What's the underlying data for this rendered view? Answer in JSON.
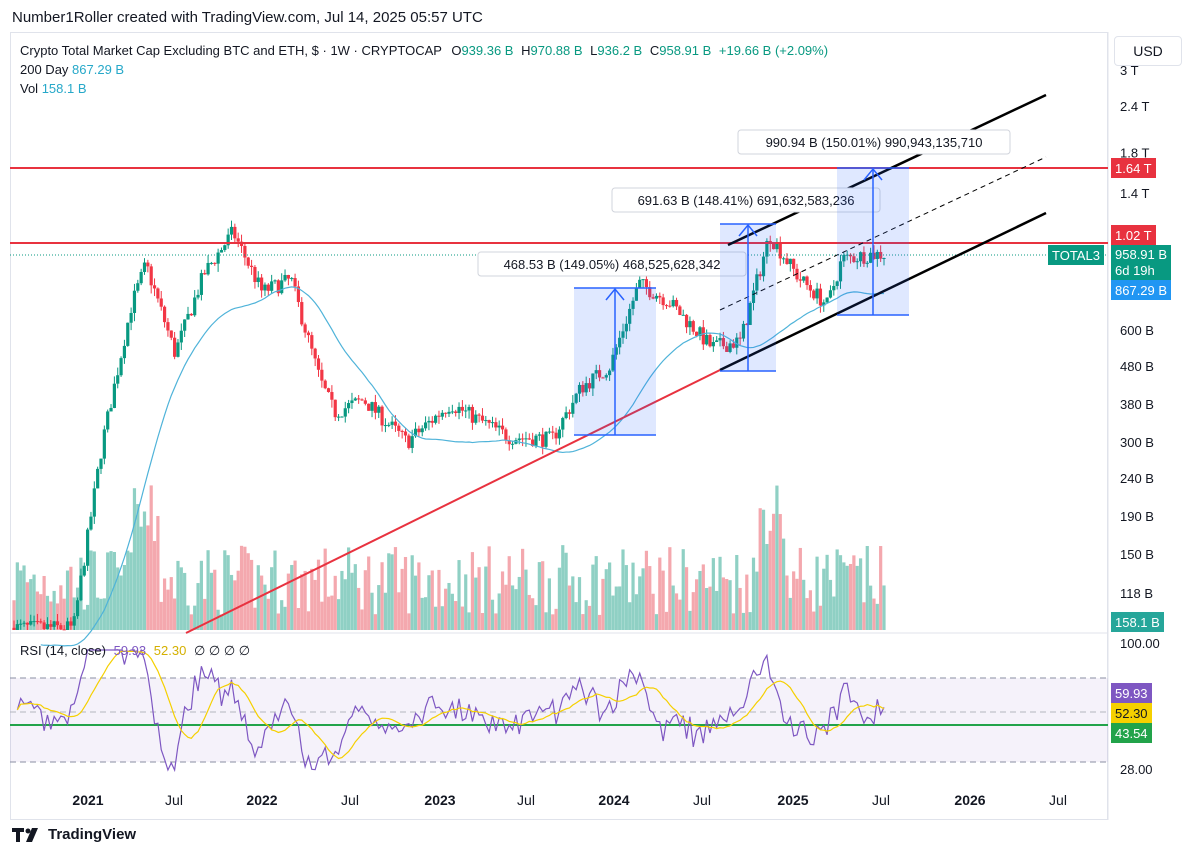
{
  "credit": "Number1Roller created with TradingView.com, Jul 14, 2025 05:57 UTC",
  "currency_button": "USD",
  "legend": {
    "title": "Crypto Total Market Cap Excluding BTC and ETH, $ · 1W · CRYPTOCAP",
    "open_label": "O",
    "open": "939.36 B",
    "high_label": "H",
    "high": "970.88 B",
    "low_label": "L",
    "low": "936.2 B",
    "close_label": "C",
    "close": "958.91 B",
    "change": "+19.66 B (+2.09%)",
    "ma_label": "200 Day",
    "ma_value": "867.29 B",
    "vol_label": "Vol",
    "vol_value": "158.1 B"
  },
  "rsi_legend": {
    "label": "RSI (14, close)",
    "value": "59.93",
    "ma_value": "52.30",
    "extras": "∅ ∅ ∅ ∅"
  },
  "price_tags": {
    "top_red": "1.64 T",
    "mid_red": "1.02 T",
    "symbol": "TOTAL3",
    "current": "958.91 B",
    "countdown": "6d 19h",
    "ma": "867.29 B",
    "vol": "158.1 B",
    "rsi": "59.93",
    "rsi_ma": "52.30",
    "rsi_level": "43.54"
  },
  "colors": {
    "up": "#089981",
    "down": "#f23645",
    "ma": "#4fb3d9",
    "red_line": "#e8323f",
    "blue": "#2962ff",
    "rsi": "#7e57c2",
    "rsi_ma": "#f5d000",
    "rsi_green": "#22a34a"
  },
  "footer": "TradingView",
  "chart_data": {
    "type": "candlestick",
    "title": "Crypto Total Market Cap Excluding BTC and ETH, $ · 1W · CRYPTOCAP",
    "y_scale": "log",
    "y_ticks": [
      "3 T",
      "2.4 T",
      "1.8 T",
      "1.4 T",
      "600 B",
      "480 B",
      "380 B",
      "300 B",
      "240 B",
      "190 B",
      "150 B",
      "118 B"
    ],
    "x_ticks": [
      "2021",
      "Jul",
      "2022",
      "Jul",
      "2023",
      "Jul",
      "2024",
      "Jul",
      "2025",
      "Jul",
      "2026",
      "Jul"
    ],
    "approx_weekly_close_path_B": [
      [
        "2020-12",
        95
      ],
      [
        "2021-02",
        300
      ],
      [
        "2021-04",
        700
      ],
      [
        "2021-05",
        900
      ],
      [
        "2021-07",
        520
      ],
      [
        "2021-09",
        850
      ],
      [
        "2021-11",
        1100
      ],
      [
        "2022-01",
        760
      ],
      [
        "2022-03",
        820
      ],
      [
        "2022-05",
        440
      ],
      [
        "2022-06",
        360
      ],
      [
        "2022-08",
        390
      ],
      [
        "2022-11",
        300
      ],
      [
        "2023-02",
        380
      ],
      [
        "2023-06",
        310
      ],
      [
        "2023-09",
        305
      ],
      [
        "2023-11",
        420
      ],
      [
        "2024-01",
        480
      ],
      [
        "2024-03",
        800
      ],
      [
        "2024-05",
        720
      ],
      [
        "2024-08",
        540
      ],
      [
        "2024-10",
        560
      ],
      [
        "2024-12",
        1080
      ],
      [
        "2025-02",
        830
      ],
      [
        "2025-04",
        700
      ],
      [
        "2025-05",
        930
      ],
      [
        "2025-07",
        958.91
      ]
    ],
    "ma_200_latest": "867.29 B",
    "horizontal_lines": [
      "1.64 T",
      "1.02 T"
    ],
    "measurements": [
      {
        "label": "468.53 B (149.05%) 468,525,628,342"
      },
      {
        "label": "691.63 B (148.41%) 691,632,583,236"
      },
      {
        "label": "990.94 B (150.01%) 990,943,135,710"
      }
    ],
    "rsi": {
      "y_ticks": [
        "100.00",
        "28.00"
      ],
      "latest": 59.93,
      "ma": 52.3,
      "level": 43.54
    }
  }
}
